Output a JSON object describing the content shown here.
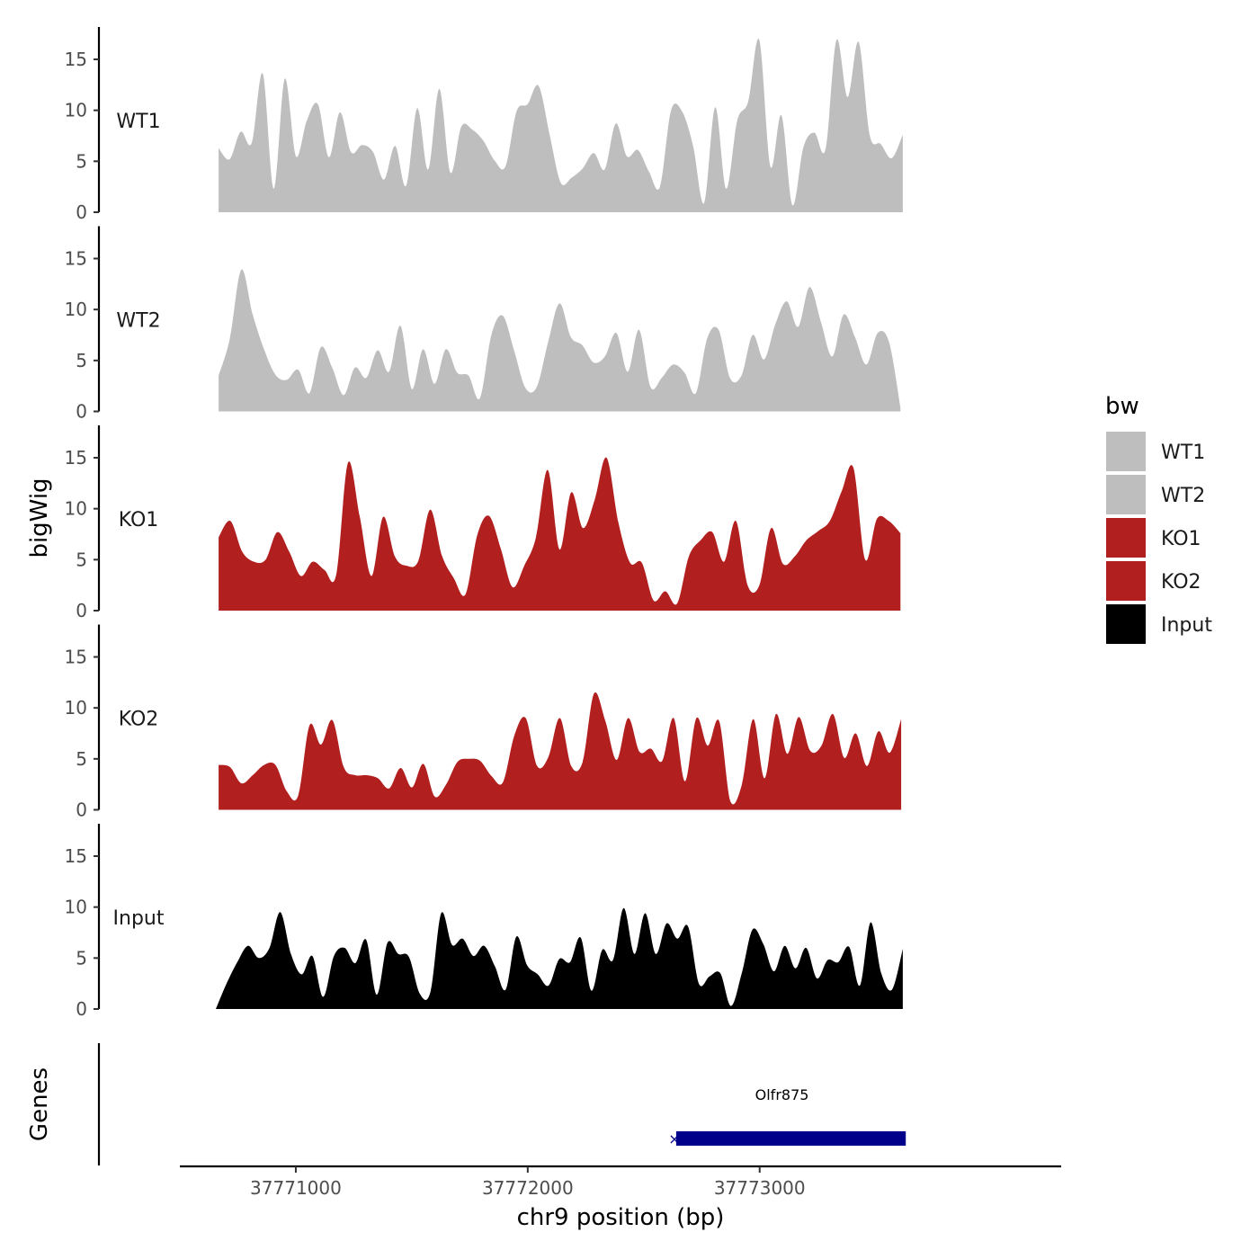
{
  "chart_data": {
    "type": "area",
    "xlabel": "chr9 position (bp)",
    "ylabel": "bigWig",
    "genes_label": "Genes",
    "xlim": [
      37770500,
      37774300
    ],
    "x_ticks": [
      37771000,
      37772000,
      37773000
    ],
    "x_tick_labels": [
      "37771000",
      "37772000",
      "37773000"
    ],
    "ylim": [
      0,
      18
    ],
    "y_ticks": [
      0,
      5,
      10,
      15
    ],
    "y_tick_labels": [
      "0",
      "5",
      "10",
      "15"
    ],
    "legend": {
      "title": "bw",
      "position": "right",
      "entries": [
        {
          "label": "WT1",
          "color": "#bebebe"
        },
        {
          "label": "WT2",
          "color": "#bebebe"
        },
        {
          "label": "KO1",
          "color": "#b21f1f"
        },
        {
          "label": "KO2",
          "color": "#b21f1f"
        },
        {
          "label": "Input",
          "color": "#000000"
        }
      ]
    },
    "series": [
      {
        "name": "WT1",
        "color": "#bebebe",
        "x_start": 37770667,
        "x_end": 37773617,
        "values": [
          6.3,
          5.2,
          7.9,
          6.8,
          13.6,
          2.3,
          13.1,
          5.5,
          9.0,
          10.6,
          5.4,
          9.8,
          5.9,
          6.6,
          5.9,
          3.2,
          6.5,
          2.6,
          10.2,
          4.2,
          12.1,
          3.9,
          8.4,
          8.1,
          7.0,
          5.1,
          4.5,
          9.9,
          10.6,
          12.4,
          7.6,
          2.9,
          3.4,
          4.3,
          5.8,
          4.2,
          8.7,
          5.5,
          6.1,
          4.0,
          2.5,
          10.0,
          9.9,
          6.5,
          0.9,
          10.3,
          2.3,
          9.0,
          10.9,
          16.9,
          4.5,
          9.5,
          0.7,
          6.4,
          7.8,
          6.2,
          16.9,
          11.3,
          16.7,
          7.6,
          6.7,
          5.3,
          7.6
        ]
      },
      {
        "name": "WT2",
        "color": "#bebebe",
        "x_start": 37770667,
        "x_end": 37773607,
        "values": [
          3.5,
          7.2,
          13.9,
          9.5,
          6.1,
          3.6,
          3.1,
          4.1,
          1.8,
          6.3,
          4.3,
          1.6,
          4.3,
          3.3,
          6.0,
          3.9,
          8.4,
          2.2,
          6.1,
          2.7,
          6.1,
          3.8,
          3.5,
          1.3,
          7.5,
          9.4,
          6.0,
          2.3,
          2.4,
          6.8,
          10.6,
          7.3,
          6.5,
          4.8,
          5.4,
          7.7,
          3.9,
          8.0,
          2.4,
          3.3,
          4.6,
          3.8,
          1.8,
          7.2,
          8.0,
          3.3,
          3.5,
          7.5,
          5.1,
          8.6,
          10.8,
          8.3,
          12.2,
          8.8,
          5.4,
          9.5,
          7.3,
          4.6,
          7.7,
          6.8,
          0.4
        ]
      },
      {
        "name": "KO1",
        "color": "#b21f1f",
        "x_start": 37770667,
        "x_end": 37773607,
        "values": [
          7.2,
          8.8,
          5.8,
          4.8,
          5.0,
          7.7,
          5.8,
          3.4,
          4.8,
          4.0,
          3.5,
          14.5,
          9.3,
          3.4,
          9.2,
          5.3,
          4.4,
          4.9,
          9.9,
          5.4,
          3.2,
          1.6,
          7.4,
          9.3,
          6.1,
          2.3,
          4.4,
          7.2,
          13.8,
          6.0,
          11.6,
          8.1,
          10.9,
          15.0,
          8.7,
          4.7,
          4.7,
          1.0,
          1.9,
          0.7,
          5.3,
          6.9,
          7.7,
          4.8,
          8.8,
          2.5,
          2.5,
          8.1,
          4.6,
          5.3,
          6.9,
          7.8,
          8.8,
          11.7,
          14.0,
          5.0,
          9.0,
          8.8,
          7.6
        ]
      },
      {
        "name": "KO2",
        "color": "#b21f1f",
        "x_start": 37770667,
        "x_end": 37773610,
        "values": [
          4.4,
          4.2,
          2.6,
          3.4,
          4.4,
          4.4,
          1.8,
          1.4,
          8.3,
          6.4,
          8.8,
          4.2,
          3.4,
          3.4,
          3.1,
          2.1,
          4.1,
          2.2,
          4.5,
          1.3,
          2.5,
          4.7,
          5.0,
          4.8,
          3.3,
          2.7,
          7.3,
          9.0,
          4.3,
          5.2,
          9.0,
          4.3,
          4.7,
          11.4,
          8.7,
          4.9,
          9.0,
          5.7,
          6.0,
          4.8,
          9.0,
          2.8,
          9.0,
          6.3,
          8.7,
          0.8,
          2.5,
          8.9,
          3.1,
          9.4,
          5.5,
          9.1,
          5.8,
          6.3,
          9.4,
          5.1,
          7.5,
          4.3,
          7.7,
          5.6,
          8.9
        ]
      },
      {
        "name": "Input",
        "color": "#000000",
        "x_start": 37770655,
        "x_end": 37773617,
        "values": [
          0.0,
          2.5,
          4.6,
          6.2,
          5.0,
          6.0,
          9.5,
          5.4,
          3.4,
          5.2,
          1.2,
          5.2,
          6.0,
          4.5,
          6.8,
          1.4,
          6.5,
          5.4,
          5.1,
          1.5,
          1.7,
          9.4,
          6.3,
          6.9,
          5.2,
          6.2,
          4.2,
          1.9,
          7.1,
          4.3,
          3.4,
          2.3,
          4.9,
          4.6,
          7.0,
          1.8,
          5.8,
          4.8,
          9.9,
          5.4,
          9.4,
          5.4,
          8.4,
          6.9,
          8.1,
          2.5,
          3.2,
          3.5,
          0.3,
          3.5,
          7.8,
          6.4,
          3.7,
          6.2,
          4.0,
          6.0,
          3.0,
          4.8,
          4.6,
          6.1,
          2.3,
          8.5,
          3.5,
          1.9,
          5.9
        ]
      }
    ],
    "genes": [
      {
        "name": "Olfr875",
        "start": 37772640,
        "end": 37773630,
        "strand": "-",
        "color": "#00008b"
      }
    ]
  }
}
